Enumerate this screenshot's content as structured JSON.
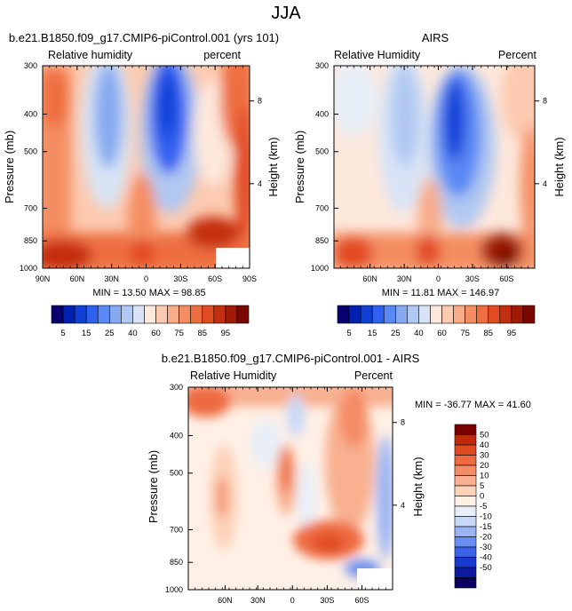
{
  "page_title": "JJA",
  "colors": {
    "humidity_levels": [
      "#08006e",
      "#0020b0",
      "#1040d8",
      "#3060f0",
      "#5a88f4",
      "#86aaf0",
      "#b0c8f2",
      "#d8e4f6",
      "#fde8dc",
      "#fccab0",
      "#f8ac88",
      "#f48e62",
      "#ee6e40",
      "#e24a22",
      "#c42e10",
      "#a01a06",
      "#7a0800"
    ],
    "difference_levels": [
      "#0a0060",
      "#0d1aa0",
      "#1838d0",
      "#3a62e8",
      "#6a8ef0",
      "#9ab4f4",
      "#c8d8f8",
      "#e8eff8",
      "#fff0e6",
      "#fcd2b8",
      "#f8b090",
      "#f48c66",
      "#ee6a40",
      "#e04a22",
      "#c02a0c",
      "#7a0000"
    ]
  },
  "chart_data": [
    {
      "type": "heatmap",
      "title": "b.e21.B1850.f09_g17.CMIP6-piControl.001 (yrs 101)",
      "left_label": "Relative humidity",
      "right_label": "percent",
      "ylabel": "Pressure (mb)",
      "y2label": "Height (km)",
      "x_ticks": [
        "90N",
        "60N",
        "30N",
        "0",
        "30S",
        "60S",
        "90S"
      ],
      "y_ticks": [
        "300",
        "400",
        "500",
        "700",
        "850",
        "1000"
      ],
      "y2_ticks": [
        "8",
        "4"
      ],
      "stats": "MIN = 13.50  MAX = 98.85",
      "colorbar_labels": [
        "5",
        "15",
        "25",
        "40",
        "60",
        "75",
        "85",
        "95"
      ]
    },
    {
      "type": "heatmap",
      "title": "AIRS",
      "left_label": "Relative Humidity",
      "right_label": "Percent",
      "ylabel": "Pressure (mb)",
      "y2label": "Height (km)",
      "x_ticks": [
        "60N",
        "30N",
        "0",
        "30S",
        "60S"
      ],
      "y_ticks": [
        "300",
        "400",
        "500",
        "700",
        "850",
        "1000"
      ],
      "y2_ticks": [
        "8",
        "4"
      ],
      "stats": "MIN = 11.81  MAX = 146.97",
      "colorbar_labels": [
        "5",
        "15",
        "25",
        "40",
        "60",
        "75",
        "85",
        "95"
      ]
    },
    {
      "type": "heatmap",
      "title": "b.e21.B1850.f09_g17.CMIP6-piControl.001 - AIRS",
      "left_label": "Relative Humidity",
      "right_label": "Percent",
      "ylabel": "Pressure (mb)",
      "y2label": "Height (km)",
      "x_ticks": [
        "60N",
        "30N",
        "0",
        "30S",
        "60S"
      ],
      "y_ticks": [
        "300",
        "400",
        "500",
        "700",
        "850",
        "1000"
      ],
      "y2_ticks": [
        "8",
        "4"
      ],
      "stats": "MIN = -36.77   MAX = 41.60",
      "colorbar_labels": [
        "50",
        "40",
        "30",
        "20",
        "10",
        "5",
        "0",
        "-5",
        "-10",
        "-15",
        "-20",
        "-30",
        "-40",
        "-50"
      ]
    }
  ]
}
